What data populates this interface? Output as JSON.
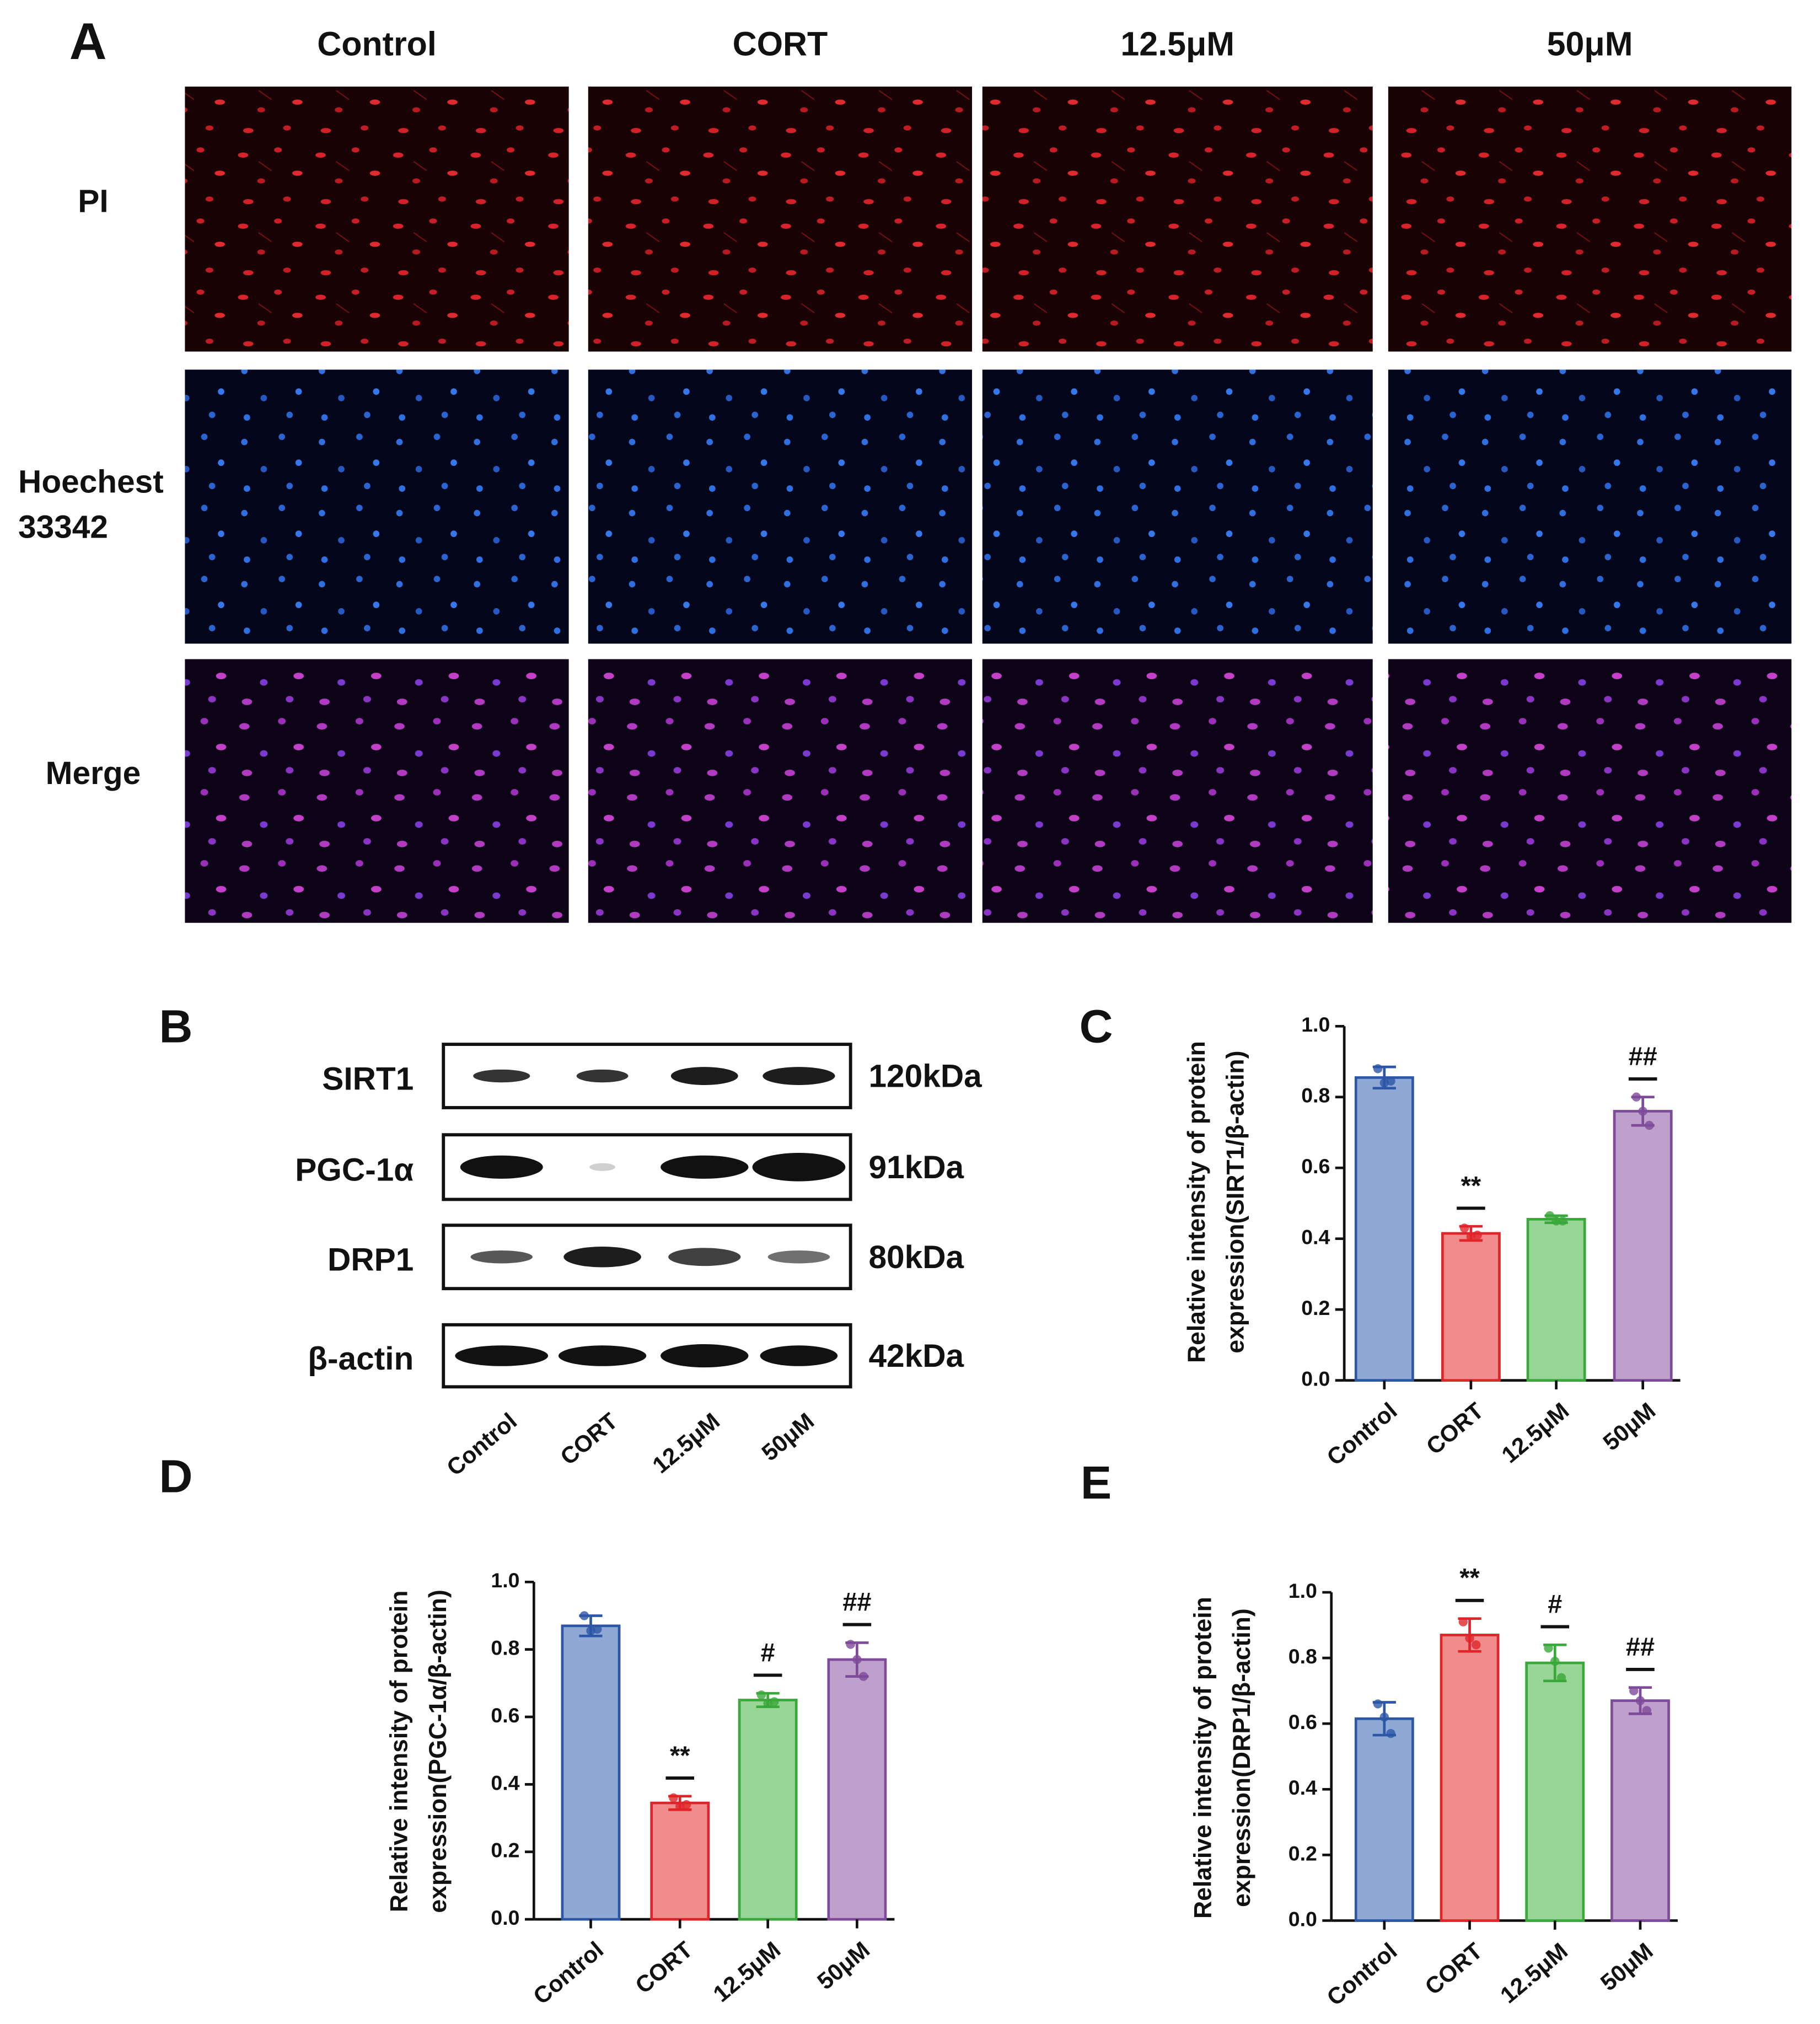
{
  "panel_a": {
    "label": "A",
    "columns": [
      "Control",
      "CORT",
      "12.5μM",
      "50μM"
    ],
    "rows": [
      [
        "PI"
      ],
      [
        "Hoechest",
        "33342"
      ],
      [
        "Merge"
      ]
    ]
  },
  "panel_b": {
    "label": "B",
    "proteins": [
      "SIRT1",
      "PGC-1α",
      "DRP1",
      "β-actin"
    ],
    "weights": [
      "120kDa",
      "91kDa",
      "80kDa",
      "42kDa"
    ],
    "lanes": [
      "Control",
      "CORT",
      "12.5μM",
      "50μM"
    ]
  },
  "chart_data": [
    {
      "label": "C",
      "type": "bar",
      "ylabel": [
        "Relative intensity of protein",
        "expression(SIRT1/β-actin)"
      ],
      "categories": [
        "Control",
        "CORT",
        "12.5μM",
        "50μM"
      ],
      "values": [
        0.855,
        0.415,
        0.455,
        0.76
      ],
      "errors": [
        0.03,
        0.02,
        0.01,
        0.04
      ],
      "points": [
        [
          0.88,
          0.84,
          0.845
        ],
        [
          0.43,
          0.405,
          0.41
        ],
        [
          0.465,
          0.45,
          0.45
        ],
        [
          0.8,
          0.76,
          0.72
        ]
      ],
      "colors": [
        "#8fa8d4",
        "#f08c8c",
        "#98d698",
        "#bfa0cc"
      ],
      "edge_colors": [
        "#2c56a6",
        "#e0252a",
        "#3aa83a",
        "#7e4a9a"
      ],
      "annotations": [
        null,
        "**",
        null,
        "##"
      ],
      "ylim": [
        0,
        1
      ],
      "yticks": [
        {
          "value": 0,
          "label": "0.0"
        },
        0.2,
        0.4,
        0.6,
        0.8,
        {
          "value": 1,
          "label": "1.0"
        }
      ]
    },
    {
      "label": "D",
      "type": "bar",
      "ylabel": [
        "Relative intensity of protein",
        "expression(PGC-1α/β-actin)"
      ],
      "categories": [
        "Control",
        "CORT",
        "12.5μM",
        "50μM"
      ],
      "values": [
        0.87,
        0.345,
        0.65,
        0.77
      ],
      "errors": [
        0.03,
        0.02,
        0.02,
        0.05
      ],
      "points": [
        [
          0.9,
          0.855,
          0.86
        ],
        [
          0.36,
          0.335,
          0.34
        ],
        [
          0.665,
          0.64,
          0.645
        ],
        [
          0.815,
          0.77,
          0.72
        ]
      ],
      "colors": [
        "#8fa8d4",
        "#f08c8c",
        "#98d698",
        "#bfa0cc"
      ],
      "edge_colors": [
        "#2c56a6",
        "#e0252a",
        "#3aa83a",
        "#7e4a9a"
      ],
      "annotations": [
        null,
        "**",
        "#",
        "##"
      ],
      "ylim": [
        0,
        1
      ],
      "yticks": [
        {
          "value": 0,
          "label": "0.0"
        },
        0.2,
        0.4,
        0.6,
        0.8,
        {
          "value": 1,
          "label": "1.0"
        }
      ]
    },
    {
      "label": "E",
      "type": "bar",
      "ylabel": [
        "Relative intensity of protein",
        "expression(DRP1/β-actin)"
      ],
      "categories": [
        "Control",
        "CORT",
        "12.5μM",
        "50μM"
      ],
      "values": [
        0.615,
        0.87,
        0.785,
        0.67
      ],
      "errors": [
        0.05,
        0.05,
        0.055,
        0.04
      ],
      "points": [
        [
          0.66,
          0.62,
          0.57
        ],
        [
          0.91,
          0.86,
          0.84
        ],
        [
          0.83,
          0.79,
          0.74
        ],
        [
          0.7,
          0.67,
          0.64
        ]
      ],
      "colors": [
        "#8fa8d4",
        "#f08c8c",
        "#98d698",
        "#bfa0cc"
      ],
      "edge_colors": [
        "#2c56a6",
        "#e0252a",
        "#3aa83a",
        "#7e4a9a"
      ],
      "annotations": [
        null,
        "**",
        "#",
        "##"
      ],
      "ylim": [
        0,
        1
      ],
      "yticks": [
        {
          "value": 0,
          "label": "0.0"
        },
        0.2,
        0.4,
        0.6,
        0.8,
        {
          "value": 1,
          "label": "1.0"
        }
      ]
    }
  ]
}
